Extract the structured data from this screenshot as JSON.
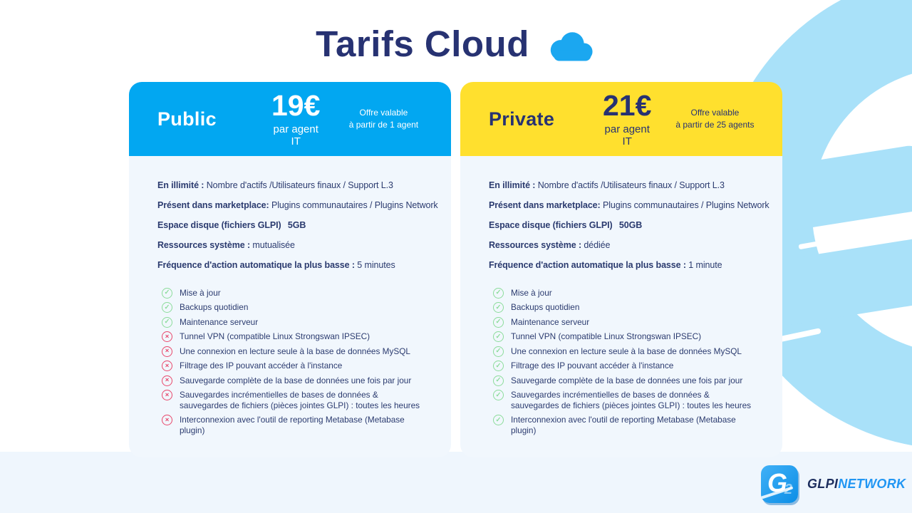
{
  "title": {
    "text": "Tarifs Cloud"
  },
  "cards": [
    {
      "id": "public",
      "name": "Public",
      "price": "19€",
      "price_unit": "par agent IT",
      "offer_line1": "Offre valable",
      "offer_line2": "à partir de 1 agent",
      "accent": "#02A7F1",
      "header_text": "#FFFFFF",
      "specs": [
        {
          "label": "En illimité :",
          "value": "Nombre d'actifs /Utilisateurs finaux / Support L.3"
        },
        {
          "label": "Présent dans marketplace:",
          "value": "Plugins communautaires / Plugins Network"
        },
        {
          "label": "Espace disque (fichiers GLPI)",
          "value": "5GB",
          "value_bold": true,
          "wide_gap": true
        },
        {
          "label": "Ressources système :",
          "value": "mutualisée"
        },
        {
          "label": "Fréquence d'action automatique la plus basse :",
          "value": "5 minutes"
        }
      ],
      "features": [
        {
          "text": "Mise à jour",
          "included": true
        },
        {
          "text": "Backups quotidien",
          "included": true
        },
        {
          "text": "Maintenance serveur",
          "included": true
        },
        {
          "text": "Tunnel VPN (compatible Linux Strongswan IPSEC)",
          "included": false
        },
        {
          "text": "Une connexion en lecture seule à la base de données MySQL",
          "included": false
        },
        {
          "text": "Filtrage des IP pouvant accéder à l'instance",
          "included": false
        },
        {
          "text": "Sauvegarde complète de la base de données une fois par jour",
          "included": false
        },
        {
          "text": "Sauvegardes incrémentielles de bases de données & sauvegardes de fichiers (pièces jointes GLPI) : toutes les heures",
          "included": false
        },
        {
          "text": "Interconnexion avec l'outil de reporting Metabase (Metabase plugin)",
          "included": false
        }
      ]
    },
    {
      "id": "private",
      "name": "Private",
      "price": "21€",
      "price_unit": "par agent IT",
      "offer_line1": "Offre valable",
      "offer_line2": "à partir de 25 agents",
      "accent": "#FFE02E",
      "header_text": "#273272",
      "specs": [
        {
          "label": "En illimité :",
          "value": "Nombre d'actifs /Utilisateurs finaux / Support L.3"
        },
        {
          "label": "Présent dans marketplace:",
          "value": "Plugins communautaires / Plugins Network"
        },
        {
          "label": "Espace disque (fichiers GLPI)",
          "value": "50GB",
          "value_bold": true,
          "wide_gap": true
        },
        {
          "label": "Ressources système :",
          "value": "dédiée"
        },
        {
          "label": "Fréquence d'action automatique la plus basse :",
          "value": "1 minute"
        }
      ],
      "features": [
        {
          "text": "Mise à jour",
          "included": true
        },
        {
          "text": "Backups quotidien",
          "included": true
        },
        {
          "text": "Maintenance serveur",
          "included": true
        },
        {
          "text": "Tunnel VPN (compatible Linux Strongswan IPSEC)",
          "included": true
        },
        {
          "text": "Une connexion en lecture seule à la base de données MySQL",
          "included": true
        },
        {
          "text": "Filtrage des IP pouvant accéder à l'instance",
          "included": true
        },
        {
          "text": "Sauvegarde complète de la base de données une fois par jour",
          "included": true
        },
        {
          "text": "Sauvegardes incrémentielles de bases de données & sauvegardes de fichiers (pièces jointes GLPI) : toutes les heures",
          "included": true
        },
        {
          "text": "Interconnexion avec l'outil de reporting Metabase (Metabase plugin)",
          "included": true
        }
      ]
    }
  ],
  "logo": {
    "glyph": "G",
    "glyph_secondary": "2",
    "primary": "GLPI",
    "secondary": "NETWORK"
  },
  "colors": {
    "public_header": "#02A7F1",
    "private_header": "#FFE02E",
    "title_navy": "#273272",
    "body_text": "#2B3B6F",
    "card_body_bg": "#F1F7FD",
    "footer_band_bg": "#EFF6FD",
    "check_green": "#8CDC9B",
    "cross_red": "#E8476B",
    "decor_blue": "#A9E1F9",
    "logo_blue": "#2196F3",
    "cloud_blue": "#1BA7F0"
  }
}
